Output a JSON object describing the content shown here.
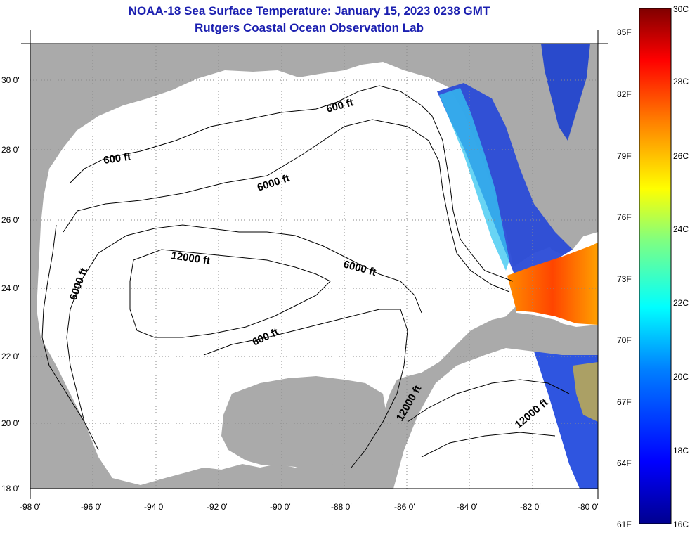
{
  "title": {
    "line1": "NOAA-18 Sea Surface Temperature:  January 15, 2023 0238 GMT",
    "line2": "Rutgers Coastal Ocean Observation Lab"
  },
  "map": {
    "lat_labels": [
      "30 0'",
      "28 0'",
      "26 0'",
      "24 0'",
      "22 0'",
      "20 0'",
      "18 0'"
    ],
    "lon_labels": [
      "-98 0'",
      "-96 0'",
      "-94 0'",
      "-92 0'",
      "-90 0'",
      "-88 0'",
      "-86 0'",
      "-84 0'",
      "-82 0'",
      "-80 0'"
    ],
    "lat_range": [
      18,
      31
    ],
    "lon_range": [
      -98,
      -80
    ],
    "contour_labels": [
      "600 ft",
      "600 ft",
      "6000 ft",
      "12000 ft",
      "6000 ft",
      "6000 ft",
      "600 ft",
      "12000 ft",
      "12000 ft"
    ],
    "colors": {
      "land": "#aaaaaa",
      "ocean": "#ffffff",
      "grid": "#9a9a9a"
    }
  },
  "colorbar": {
    "f_labels": [
      "85F",
      "82F",
      "79F",
      "76F",
      "73F",
      "70F",
      "67F",
      "64F",
      "61F"
    ],
    "c_labels": [
      "30C",
      "28C",
      "26C",
      "24C",
      "22C",
      "20C",
      "18C",
      "16C"
    ],
    "range_c": [
      16,
      30
    ],
    "colors": [
      "#00008f",
      "#0000ff",
      "#0080ff",
      "#00ffff",
      "#80ff80",
      "#ffff00",
      "#ff8000",
      "#ff0000",
      "#800000"
    ]
  }
}
